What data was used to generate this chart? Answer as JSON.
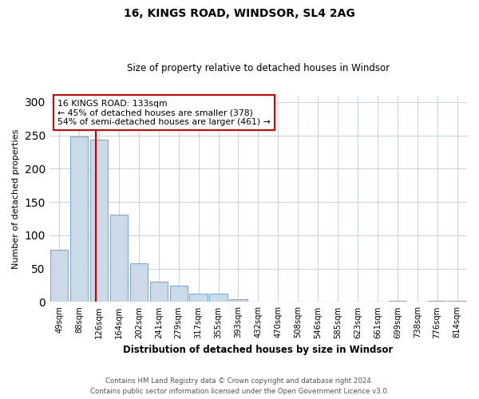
{
  "title_line1": "16, KINGS ROAD, WINDSOR, SL4 2AG",
  "title_line2": "Size of property relative to detached houses in Windsor",
  "xlabel": "Distribution of detached houses by size in Windsor",
  "ylabel": "Number of detached properties",
  "categories": [
    "49sqm",
    "88sqm",
    "126sqm",
    "164sqm",
    "202sqm",
    "241sqm",
    "279sqm",
    "317sqm",
    "355sqm",
    "393sqm",
    "432sqm",
    "470sqm",
    "508sqm",
    "546sqm",
    "585sqm",
    "623sqm",
    "661sqm",
    "699sqm",
    "738sqm",
    "776sqm",
    "814sqm"
  ],
  "values": [
    78,
    248,
    244,
    131,
    58,
    30,
    24,
    12,
    12,
    4,
    1,
    0,
    0,
    0,
    0,
    0,
    0,
    2,
    0,
    2,
    2
  ],
  "bar_color": "#ccd9e8",
  "bar_edge_color": "#7aadd4",
  "vline_color": "#cc0000",
  "annotation_line1": "16 KINGS ROAD: 133sqm",
  "annotation_line2": "← 45% of detached houses are smaller (378)",
  "annotation_line3": "54% of semi-detached houses are larger (461) →",
  "annotation_box_color": "#dd0000",
  "footer_line1": "Contains HM Land Registry data © Crown copyright and database right 2024.",
  "footer_line2": "Contains public sector information licensed under the Open Government Licence v3.0.",
  "ylim": [
    0,
    310
  ],
  "background_color": "#ffffff",
  "grid_color": "#cdd6e0"
}
